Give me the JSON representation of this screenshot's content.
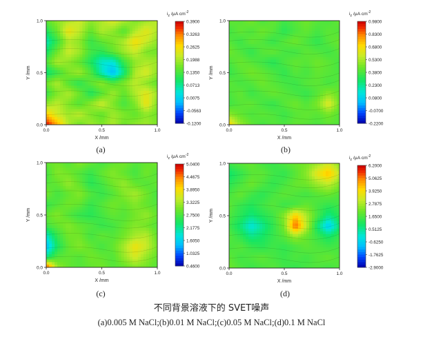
{
  "figure": {
    "caption_title": "不同背景溶液下的 SVET噪声",
    "caption_sub": "(a)0.005 M NaCl;(b)0.01 M NaCl;(c)0.05 M NaCl;(d)0.1 M NaCl",
    "panel_labels": [
      "(a)",
      "(b)",
      "(c)",
      "(d)"
    ]
  },
  "chart_data": [
    {
      "type": "heatmap",
      "panel": "(a)",
      "xlabel": "X /mm",
      "ylabel": "Y /mm",
      "xticks": [
        "0.0",
        "0.5",
        "1.0"
      ],
      "yticks": [
        "0.0",
        "0.5",
        "1.0"
      ],
      "xlim": [
        0,
        1
      ],
      "ylim": [
        0,
        1
      ],
      "colorbar_title": "i_z /μA cm^-2",
      "colorbar_ticks": [
        "0.3900",
        "0.3263",
        "0.2625",
        "0.1988",
        "0.1350",
        "0.0713",
        "0.0075",
        "-0.0563",
        "-0.1200"
      ],
      "zlim": [
        -0.12,
        0.39
      ],
      "grid": [
        [
          0.15,
          0.18,
          0.2,
          0.22,
          0.18,
          0.2,
          0.23,
          0.2,
          0.17,
          0.19,
          0.21
        ],
        [
          0.1,
          0.16,
          0.25,
          0.21,
          0.15,
          0.2,
          0.18,
          0.14,
          0.2,
          0.24,
          0.2
        ],
        [
          0.05,
          0.12,
          0.2,
          0.18,
          0.12,
          0.15,
          0.17,
          0.2,
          0.26,
          0.22,
          0.18
        ],
        [
          0.09,
          0.16,
          0.22,
          0.19,
          0.13,
          0.11,
          0.15,
          0.19,
          0.22,
          0.17,
          0.16
        ],
        [
          0.14,
          0.2,
          0.18,
          0.15,
          0.1,
          0.04,
          0.03,
          0.12,
          0.18,
          0.2,
          0.19
        ],
        [
          0.08,
          0.12,
          0.17,
          0.19,
          0.14,
          0.05,
          -0.02,
          0.08,
          0.2,
          0.23,
          0.18
        ],
        [
          0.16,
          0.2,
          0.14,
          0.11,
          0.15,
          0.18,
          0.14,
          0.17,
          0.21,
          0.18,
          0.15
        ],
        [
          0.12,
          0.17,
          0.2,
          0.16,
          0.1,
          0.14,
          0.19,
          0.15,
          0.2,
          0.24,
          0.19
        ],
        [
          0.18,
          0.21,
          0.17,
          0.14,
          0.18,
          0.22,
          0.17,
          0.13,
          0.17,
          0.25,
          0.17
        ],
        [
          0.28,
          0.22,
          0.19,
          0.21,
          0.17,
          0.15,
          0.19,
          0.17,
          0.15,
          0.18,
          0.16
        ],
        [
          0.38,
          0.3,
          0.2,
          0.16,
          0.19,
          0.17,
          0.2,
          0.16,
          0.18,
          0.19,
          0.17
        ]
      ]
    },
    {
      "type": "heatmap",
      "panel": "(b)",
      "xlabel": "X /mm",
      "ylabel": "Y /mm",
      "xticks": [
        "0.0",
        "0.5",
        "1.0"
      ],
      "yticks": [
        "0.0",
        "0.5",
        "1.0"
      ],
      "xlim": [
        0,
        1
      ],
      "ylim": [
        0,
        1
      ],
      "colorbar_title": "i_z /μA cm^-2",
      "colorbar_ticks": [
        "0.9800",
        "0.8300",
        "0.6800",
        "0.5300",
        "0.3800",
        "0.2300",
        "0.0800",
        "-0.0700",
        "-0.2200"
      ],
      "zlim": [
        -0.22,
        0.98
      ],
      "grid": [
        [
          0.42,
          0.4,
          0.45,
          0.38,
          0.42,
          0.36,
          0.4,
          0.44,
          0.4,
          0.38,
          0.42
        ],
        [
          0.36,
          0.42,
          0.38,
          0.44,
          0.4,
          0.32,
          0.38,
          0.42,
          0.37,
          0.41,
          0.39
        ],
        [
          0.4,
          0.35,
          0.42,
          0.39,
          0.34,
          0.4,
          0.44,
          0.38,
          0.33,
          0.4,
          0.43
        ],
        [
          0.44,
          0.39,
          0.33,
          0.4,
          0.42,
          0.37,
          0.36,
          0.41,
          0.39,
          0.36,
          0.4
        ],
        [
          0.38,
          0.43,
          0.4,
          0.36,
          0.31,
          0.38,
          0.42,
          0.4,
          0.44,
          0.41,
          0.37
        ],
        [
          0.34,
          0.4,
          0.45,
          0.42,
          0.38,
          0.33,
          0.4,
          0.37,
          0.42,
          0.4,
          0.38
        ],
        [
          0.41,
          0.37,
          0.39,
          0.44,
          0.4,
          0.37,
          0.35,
          0.4,
          0.41,
          0.37,
          0.4
        ],
        [
          0.38,
          0.42,
          0.35,
          0.39,
          0.43,
          0.4,
          0.37,
          0.34,
          0.4,
          0.48,
          0.42
        ],
        [
          0.36,
          0.4,
          0.42,
          0.37,
          0.34,
          0.4,
          0.44,
          0.39,
          0.46,
          0.62,
          0.44
        ],
        [
          0.48,
          0.42,
          0.38,
          0.41,
          0.39,
          0.35,
          0.4,
          0.42,
          0.4,
          0.45,
          0.4
        ],
        [
          0.7,
          0.5,
          0.42,
          0.37,
          0.4,
          0.38,
          0.42,
          0.4,
          0.38,
          0.41,
          0.39
        ]
      ]
    },
    {
      "type": "heatmap",
      "panel": "(c)",
      "xlabel": "X /mm",
      "ylabel": "Y /mm",
      "xticks": [
        "0.0",
        "0.5",
        "1.0"
      ],
      "yticks": [
        "0.0",
        "0.5",
        "1.0"
      ],
      "xlim": [
        0,
        1
      ],
      "ylim": [
        0,
        1
      ],
      "colorbar_title": "i_z /μA cm^-2",
      "colorbar_ticks": [
        "5.0400",
        "4.4675",
        "3.8950",
        "3.3225",
        "2.7500",
        "2.1775",
        "1.6050",
        "1.0325",
        "0.4600"
      ],
      "zlim": [
        0.46,
        5.04
      ],
      "grid": [
        [
          2.9,
          3.0,
          2.8,
          3.1,
          2.9,
          2.7,
          2.9,
          3.0,
          2.8,
          2.9,
          3.0
        ],
        [
          2.7,
          3.1,
          3.0,
          2.8,
          2.6,
          2.9,
          3.1,
          2.9,
          2.7,
          3.0,
          2.8
        ],
        [
          2.8,
          2.9,
          3.2,
          2.9,
          2.5,
          2.7,
          3.0,
          3.2,
          2.9,
          2.8,
          2.9
        ],
        [
          3.0,
          2.7,
          2.9,
          3.1,
          2.8,
          2.6,
          2.8,
          3.1,
          3.3,
          3.0,
          2.7
        ],
        [
          2.6,
          2.8,
          3.0,
          2.9,
          2.6,
          2.8,
          3.0,
          2.9,
          3.1,
          2.9,
          2.8
        ],
        [
          2.9,
          3.1,
          2.8,
          2.6,
          2.5,
          2.7,
          2.9,
          2.8,
          3.0,
          3.2,
          2.9
        ],
        [
          2.7,
          2.9,
          3.1,
          2.9,
          2.8,
          2.6,
          2.7,
          2.9,
          3.1,
          3.0,
          2.8
        ],
        [
          1.9,
          2.6,
          3.0,
          3.0,
          2.7,
          2.9,
          2.8,
          3.0,
          3.3,
          3.4,
          2.9
        ],
        [
          1.4,
          2.4,
          2.9,
          3.1,
          2.9,
          2.7,
          2.9,
          3.3,
          3.8,
          3.5,
          3.0
        ],
        [
          2.2,
          2.8,
          2.9,
          2.8,
          3.0,
          2.9,
          2.8,
          3.2,
          3.6,
          3.2,
          2.9
        ],
        [
          4.8,
          3.2,
          2.9,
          2.8,
          2.9,
          3.0,
          2.8,
          2.9,
          3.1,
          3.0,
          2.8
        ]
      ]
    },
    {
      "type": "heatmap",
      "panel": "(d)",
      "xlabel": "X /mm",
      "ylabel": "Y /mm",
      "xticks": [
        "0.0",
        "0.5",
        "1.0"
      ],
      "yticks": [
        "0.0",
        "0.5",
        "1.0"
      ],
      "xlim": [
        0,
        1
      ],
      "ylim": [
        0,
        1
      ],
      "colorbar_title": "i_z /μA cm^-2",
      "colorbar_ticks": [
        "6.2000",
        "5.0625",
        "3.9250",
        "2.7875",
        "1.6500",
        "0.5125",
        "-0.6250",
        "-1.7625",
        "-2.9000"
      ],
      "zlim": [
        -2.9,
        6.2
      ],
      "grid": [
        [
          1.5,
          1.8,
          2.0,
          1.6,
          1.4,
          1.7,
          2.0,
          2.2,
          2.6,
          3.2,
          2.4
        ],
        [
          0.8,
          1.3,
          1.8,
          1.9,
          1.5,
          1.3,
          1.8,
          2.4,
          3.6,
          4.4,
          3.0
        ],
        [
          1.2,
          1.6,
          2.1,
          1.7,
          1.3,
          1.6,
          2.0,
          2.1,
          2.6,
          3.0,
          2.3
        ],
        [
          1.6,
          2.0,
          1.5,
          1.2,
          1.6,
          1.9,
          1.7,
          1.5,
          1.8,
          2.0,
          1.7
        ],
        [
          1.9,
          1.4,
          1.1,
          1.5,
          1.8,
          1.4,
          1.6,
          2.0,
          1.6,
          1.3,
          1.5
        ],
        [
          1.7,
          1.2,
          0.7,
          1.1,
          1.5,
          2.4,
          4.2,
          2.8,
          1.6,
          0.6,
          1.2
        ],
        [
          1.5,
          0.8,
          -0.2,
          0.5,
          1.3,
          2.2,
          5.4,
          3.0,
          0.8,
          -0.8,
          0.8
        ],
        [
          1.8,
          1.3,
          0.6,
          0.9,
          1.4,
          1.8,
          2.6,
          2.0,
          1.4,
          0.9,
          1.4
        ],
        [
          1.6,
          1.8,
          1.4,
          1.2,
          1.5,
          1.3,
          1.6,
          1.9,
          1.7,
          1.5,
          1.6
        ],
        [
          1.9,
          1.5,
          1.7,
          1.9,
          1.6,
          1.4,
          1.7,
          1.5,
          1.8,
          2.0,
          1.7
        ],
        [
          2.1,
          1.7,
          1.4,
          1.6,
          1.8,
          1.5,
          1.3,
          1.6,
          1.7,
          1.5,
          1.8
        ]
      ]
    }
  ]
}
